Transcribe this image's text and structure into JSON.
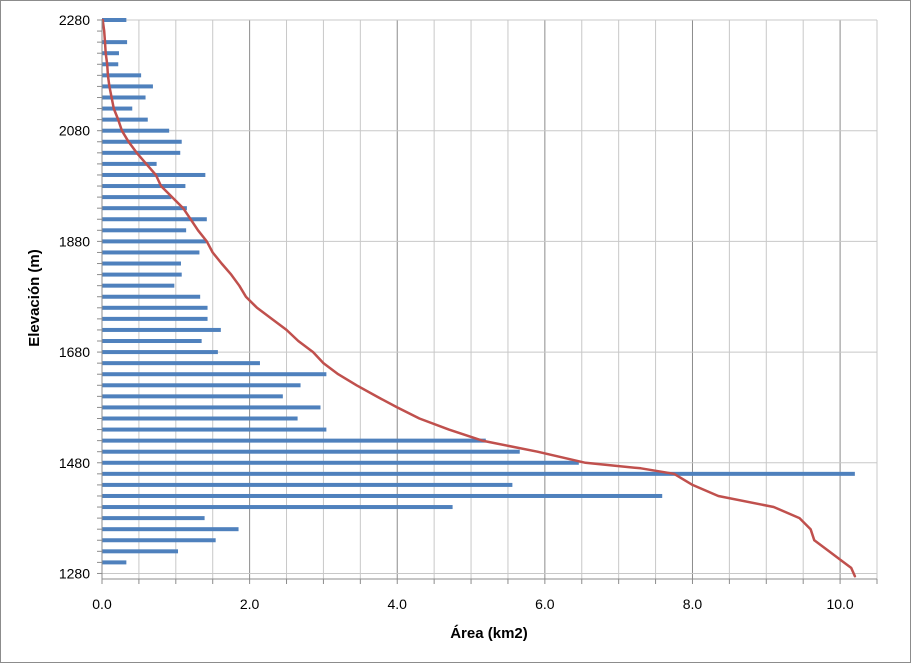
{
  "chart_data": {
    "type": "bar",
    "orientation": "horizontal",
    "title": "",
    "xlabel": "Área (km2)",
    "ylabel": "Elevación (m)",
    "xlim": [
      0,
      10.5
    ],
    "ylim": [
      1270,
      2280
    ],
    "x_ticks": [
      "0.0",
      "2.0",
      "4.0",
      "6.0",
      "8.0",
      "10.0"
    ],
    "x_tick_values": [
      0,
      2,
      4,
      6,
      8,
      10
    ],
    "y_ticks": [
      "1280",
      "1480",
      "1680",
      "1880",
      "2080",
      "2280"
    ],
    "y_tick_values": [
      1280,
      1480,
      1680,
      1880,
      2080,
      2280
    ],
    "grid": true,
    "legend": "none",
    "bar_color": "#4f81bd",
    "line_color": "#c0504d",
    "series": [
      {
        "type": "bar",
        "elevation": [
          2280,
          2260,
          2240,
          2220,
          2200,
          2180,
          2160,
          2140,
          2120,
          2100,
          2080,
          2060,
          2040,
          2020,
          2000,
          1980,
          1960,
          1940,
          1920,
          1900,
          1880,
          1860,
          1840,
          1820,
          1800,
          1780,
          1760,
          1740,
          1720,
          1700,
          1680,
          1660,
          1640,
          1620,
          1600,
          1580,
          1560,
          1540,
          1520,
          1500,
          1480,
          1460,
          1440,
          1420,
          1400,
          1380,
          1360,
          1340,
          1320,
          1300,
          1280
        ],
        "area": [
          0.33,
          0.0,
          0.34,
          0.23,
          0.22,
          0.53,
          0.69,
          0.59,
          0.41,
          0.62,
          0.91,
          1.08,
          1.06,
          0.74,
          1.4,
          1.13,
          0.94,
          1.15,
          1.42,
          1.14,
          1.41,
          1.32,
          1.07,
          1.08,
          0.98,
          1.33,
          1.43,
          1.43,
          1.61,
          1.35,
          1.57,
          2.14,
          3.04,
          2.69,
          2.45,
          2.96,
          2.65,
          3.04,
          5.2,
          5.66,
          6.46,
          10.2,
          5.56,
          7.59,
          4.75,
          1.39,
          1.85,
          1.54,
          1.03,
          0.33,
          0.0
        ]
      },
      {
        "type": "line",
        "elevation": [
          1275,
          1290,
          1300,
          1320,
          1340,
          1360,
          1380,
          1400,
          1420,
          1440,
          1460,
          1470,
          1480,
          1500,
          1520,
          1540,
          1560,
          1580,
          1600,
          1620,
          1640,
          1660,
          1680,
          1700,
          1720,
          1740,
          1760,
          1780,
          1800,
          1820,
          1840,
          1860,
          1880,
          1900,
          1920,
          1940,
          1960,
          1980,
          2000,
          2020,
          2040,
          2060,
          2080,
          2100,
          2120,
          2140,
          2160,
          2180,
          2200,
          2220,
          2240,
          2260,
          2280
        ],
        "area": [
          10.2,
          10.15,
          10.05,
          9.85,
          9.65,
          9.6,
          9.45,
          9.1,
          8.35,
          8.0,
          7.75,
          7.3,
          6.55,
          5.9,
          5.15,
          4.7,
          4.3,
          4.0,
          3.72,
          3.45,
          3.2,
          3.0,
          2.86,
          2.66,
          2.5,
          2.3,
          2.1,
          1.95,
          1.86,
          1.75,
          1.62,
          1.5,
          1.42,
          1.3,
          1.2,
          1.1,
          0.95,
          0.8,
          0.73,
          0.6,
          0.47,
          0.36,
          0.27,
          0.22,
          0.16,
          0.13,
          0.1,
          0.08,
          0.07,
          0.05,
          0.04,
          0.03,
          0.01
        ]
      }
    ]
  }
}
